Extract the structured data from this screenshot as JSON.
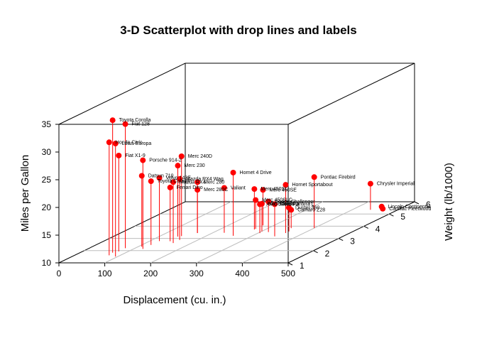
{
  "chart_data": {
    "type": "scatter",
    "title": "3-D Scatterplot with drop lines and labels",
    "xlabel": "Displacement (cu. in.)",
    "ylabel": "Miles per Gallon",
    "zlabel": "Weight (lb/1000)",
    "xlim": [
      0,
      500
    ],
    "ylim": [
      10,
      35
    ],
    "zlim": [
      1,
      6
    ],
    "x_ticks": [
      0,
      100,
      200,
      300,
      400,
      500
    ],
    "y_ticks": [
      10,
      15,
      20,
      25,
      30,
      35
    ],
    "z_ticks": [
      1,
      2,
      3,
      4,
      5,
      6
    ],
    "grid": true,
    "point_color": "#ff0000",
    "drop_line_color": "#ff0000",
    "points": [
      {
        "label": "Mazda RX4",
        "x": 160,
        "y": 21.0,
        "z": 2.62
      },
      {
        "label": "Mazda RX4 Wag",
        "x": 160,
        "y": 21.0,
        "z": 2.875
      },
      {
        "label": "Datsun 710",
        "x": 108,
        "y": 22.8,
        "z": 2.32
      },
      {
        "label": "Hornet 4 Drive",
        "x": 258,
        "y": 21.4,
        "z": 3.215
      },
      {
        "label": "Hornet Sportabout",
        "x": 360,
        "y": 18.7,
        "z": 3.44
      },
      {
        "label": "Valiant",
        "x": 225,
        "y": 18.1,
        "z": 3.46
      },
      {
        "label": "Duster 360",
        "x": 360,
        "y": 14.3,
        "z": 3.57
      },
      {
        "label": "Merc 240D",
        "x": 146.7,
        "y": 24.4,
        "z": 3.19
      },
      {
        "label": "Merc 230",
        "x": 140.8,
        "y": 22.8,
        "z": 3.15
      },
      {
        "label": "Merc 280",
        "x": 167.6,
        "y": 19.2,
        "z": 3.44
      },
      {
        "label": "Merc 280C",
        "x": 167.6,
        "y": 17.8,
        "z": 3.44
      },
      {
        "label": "Merc 450SE",
        "x": 275.8,
        "y": 16.4,
        "z": 4.07
      },
      {
        "label": "Merc 450SL",
        "x": 275.8,
        "y": 17.3,
        "z": 3.73
      },
      {
        "label": "Merc 450SLC",
        "x": 275.8,
        "y": 15.2,
        "z": 3.78
      },
      {
        "label": "Cadillac Fleetwood",
        "x": 472,
        "y": 10.4,
        "z": 5.25
      },
      {
        "label": "Lincoln Continental",
        "x": 460,
        "y": 10.4,
        "z": 5.424
      },
      {
        "label": "Chrysler Imperial",
        "x": 440,
        "y": 14.7,
        "z": 5.345
      },
      {
        "label": "Fiat 128",
        "x": 78.7,
        "y": 32.4,
        "z": 2.2
      },
      {
        "label": "Honda Civic",
        "x": 75.7,
        "y": 30.4,
        "z": 1.615
      },
      {
        "label": "Toyota Corolla",
        "x": 71.1,
        "y": 33.9,
        "z": 1.835
      },
      {
        "label": "Toyota Corona",
        "x": 120.1,
        "y": 21.5,
        "z": 2.465
      },
      {
        "label": "Dodge Challenger",
        "x": 318,
        "y": 15.5,
        "z": 3.52
      },
      {
        "label": "AMC Javelin",
        "x": 304,
        "y": 15.2,
        "z": 3.435
      },
      {
        "label": "Camaro Z28",
        "x": 350,
        "y": 13.3,
        "z": 3.84
      },
      {
        "label": "Pontiac Firebird",
        "x": 400,
        "y": 19.2,
        "z": 3.845
      },
      {
        "label": "Fiat X1-9",
        "x": 79,
        "y": 27.3,
        "z": 1.935
      },
      {
        "label": "Porsche 914-2",
        "x": 120.3,
        "y": 26.0,
        "z": 2.14
      },
      {
        "label": "Lotus Europa",
        "x": 95.1,
        "y": 30.4,
        "z": 1.513
      },
      {
        "label": "Ford Pantera L",
        "x": 351,
        "y": 15.8,
        "z": 3.17
      },
      {
        "label": "Ferrari Dino",
        "x": 145,
        "y": 19.7,
        "z": 2.77
      },
      {
        "label": "Maserati Bora",
        "x": 301,
        "y": 15.0,
        "z": 3.57
      },
      {
        "label": "Volvo 142E",
        "x": 121,
        "y": 21.4,
        "z": 2.78
      }
    ]
  }
}
